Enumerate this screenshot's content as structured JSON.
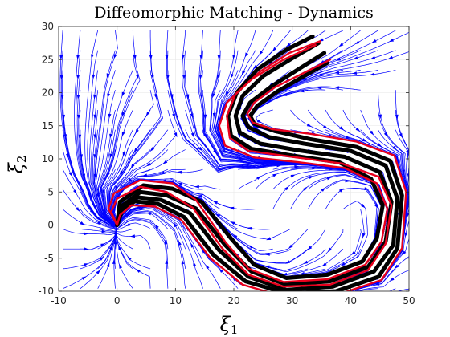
{
  "chart_data": {
    "type": "line",
    "title": "Diffeomorphic Matching - Dynamics",
    "xlabel": {
      "base": "ξ",
      "sub": "1"
    },
    "ylabel": {
      "base": "ξ",
      "sub": "2"
    },
    "xlim": [
      -10,
      50
    ],
    "ylim": [
      -10,
      30
    ],
    "xticks": [
      -10,
      0,
      10,
      20,
      30,
      40,
      50
    ],
    "yticks": [
      -10,
      -5,
      0,
      5,
      10,
      15,
      20,
      25,
      30
    ],
    "grid": true,
    "attractor": [
      0,
      0
    ],
    "colors": {
      "streamlines": "#0000ff",
      "demonstrations": "#000000",
      "reproductions": "#e8001c"
    },
    "series": [
      {
        "role": "demonstrations",
        "curves": [
          [
            [
              33.5,
              28.5
            ],
            [
              29,
              26.5
            ],
            [
              24,
              23.5
            ],
            [
              20.5,
              20
            ],
            [
              19,
              16.5
            ],
            [
              19.5,
              13.5
            ],
            [
              23,
              11.5
            ],
            [
              30,
              10.5
            ],
            [
              38,
              9.5
            ],
            [
              43.5,
              7
            ],
            [
              45.5,
              3
            ],
            [
              44.5,
              -2
            ],
            [
              42,
              -5.5
            ],
            [
              36,
              -7.5
            ],
            [
              29,
              -8
            ],
            [
              23.5,
              -6
            ],
            [
              19.5,
              -2
            ],
            [
              14.5,
              3.5
            ],
            [
              9.5,
              5.5
            ],
            [
              4.5,
              6
            ],
            [
              0.5,
              3.5
            ],
            [
              0,
              0
            ]
          ],
          [
            [
              34.5,
              27.5
            ],
            [
              30,
              25.2
            ],
            [
              25,
              22.5
            ],
            [
              21.5,
              19.5
            ],
            [
              20.3,
              16.5
            ],
            [
              21,
              14
            ],
            [
              24.5,
              12.3
            ],
            [
              31,
              11.3
            ],
            [
              39,
              10.3
            ],
            [
              45,
              8
            ],
            [
              47,
              3.5
            ],
            [
              46,
              -2.5
            ],
            [
              43,
              -6.3
            ],
            [
              36.5,
              -8.5
            ],
            [
              29,
              -9
            ],
            [
              23,
              -7
            ],
            [
              18.5,
              -3
            ],
            [
              13.5,
              2.5
            ],
            [
              8.5,
              4.5
            ],
            [
              4,
              5
            ],
            [
              1,
              3
            ],
            [
              0,
              0
            ]
          ],
          [
            [
              35.5,
              26
            ],
            [
              31,
              23.5
            ],
            [
              26.5,
              21
            ],
            [
              22.8,
              18.5
            ],
            [
              21.5,
              16.5
            ],
            [
              22.5,
              14.8
            ],
            [
              26,
              13.3
            ],
            [
              32,
              12.3
            ],
            [
              40,
              11.2
            ],
            [
              46,
              9
            ],
            [
              48,
              4
            ],
            [
              47.3,
              -3
            ],
            [
              44,
              -7
            ],
            [
              37,
              -9.3
            ],
            [
              29,
              -9.8
            ],
            [
              22.5,
              -7.8
            ],
            [
              17.5,
              -3.8
            ],
            [
              12.5,
              1.8
            ],
            [
              7.5,
              3.8
            ],
            [
              3.5,
              4.2
            ],
            [
              1,
              2.5
            ],
            [
              0,
              0
            ]
          ],
          [
            [
              36,
              24.5
            ],
            [
              32,
              22.5
            ],
            [
              27.5,
              20.2
            ],
            [
              24,
              18
            ],
            [
              22.8,
              16.5
            ],
            [
              23.5,
              15.3
            ],
            [
              27,
              14.2
            ],
            [
              33,
              13
            ],
            [
              41,
              11.8
            ],
            [
              46.8,
              9.7
            ],
            [
              48.8,
              4.5
            ],
            [
              48,
              -3.5
            ],
            [
              44.8,
              -7.8
            ],
            [
              37.5,
              -10
            ],
            [
              29,
              -10.3
            ],
            [
              22,
              -8.5
            ],
            [
              16.5,
              -4.5
            ],
            [
              11.5,
              1.2
            ],
            [
              7,
              3.2
            ],
            [
              3,
              3.6
            ],
            [
              0.8,
              2
            ],
            [
              0,
              0
            ]
          ]
        ]
      },
      {
        "role": "reproductions",
        "curves": [
          [
            [
              34,
              27.2
            ],
            [
              28.5,
              25
            ],
            [
              23,
              22
            ],
            [
              18.8,
              18.5
            ],
            [
              17.5,
              15
            ],
            [
              18.5,
              12
            ],
            [
              23.5,
              10.2
            ],
            [
              31,
              9.5
            ],
            [
              39,
              8.6
            ],
            [
              44.5,
              6.3
            ],
            [
              46.3,
              2.5
            ],
            [
              45.3,
              -2.5
            ],
            [
              42.5,
              -6
            ],
            [
              36,
              -8.2
            ],
            [
              28.5,
              -8.6
            ],
            [
              22.5,
              -6.6
            ],
            [
              18.5,
              -2.5
            ],
            [
              13.5,
              3.8
            ],
            [
              9.5,
              6.3
            ],
            [
              4,
              6.8
            ],
            [
              -0.5,
              4.8
            ],
            [
              -1.5,
              2.5
            ],
            [
              0,
              0
            ]
          ],
          [
            [
              36.5,
              25
            ],
            [
              32,
              23
            ],
            [
              27,
              20.8
            ],
            [
              23.5,
              18.5
            ],
            [
              22.3,
              16.8
            ],
            [
              23.2,
              15.5
            ],
            [
              26.5,
              14.5
            ],
            [
              33,
              13.8
            ],
            [
              41,
              12.6
            ],
            [
              47.5,
              10.5
            ],
            [
              49.5,
              5
            ],
            [
              48.8,
              -3.5
            ],
            [
              45.3,
              -8.3
            ],
            [
              37.5,
              -10.6
            ],
            [
              28.5,
              -10.8
            ],
            [
              21.5,
              -9
            ],
            [
              16,
              -5
            ],
            [
              11,
              0.8
            ],
            [
              6.5,
              2.8
            ],
            [
              2.5,
              3
            ],
            [
              0.5,
              1.5
            ],
            [
              0,
              0
            ]
          ],
          [
            [
              34.8,
              27.8
            ],
            [
              29.5,
              26
            ],
            [
              24.5,
              23.2
            ],
            [
              20.3,
              19.8
            ],
            [
              18.8,
              16.5
            ],
            [
              19.3,
              13.2
            ],
            [
              22.5,
              11.2
            ],
            [
              30,
              10.3
            ],
            [
              38.5,
              9.3
            ],
            [
              44.8,
              7.3
            ],
            [
              47,
              3
            ],
            [
              46,
              -2.8
            ],
            [
              43,
              -6.8
            ],
            [
              36.5,
              -9
            ],
            [
              28.5,
              -9.3
            ],
            [
              22.5,
              -7.5
            ],
            [
              18,
              -3.5
            ],
            [
              13,
              2.6
            ],
            [
              8.5,
              5
            ],
            [
              4,
              5.8
            ],
            [
              0,
              4
            ],
            [
              -1,
              2
            ],
            [
              0,
              0
            ]
          ]
        ]
      }
    ]
  }
}
